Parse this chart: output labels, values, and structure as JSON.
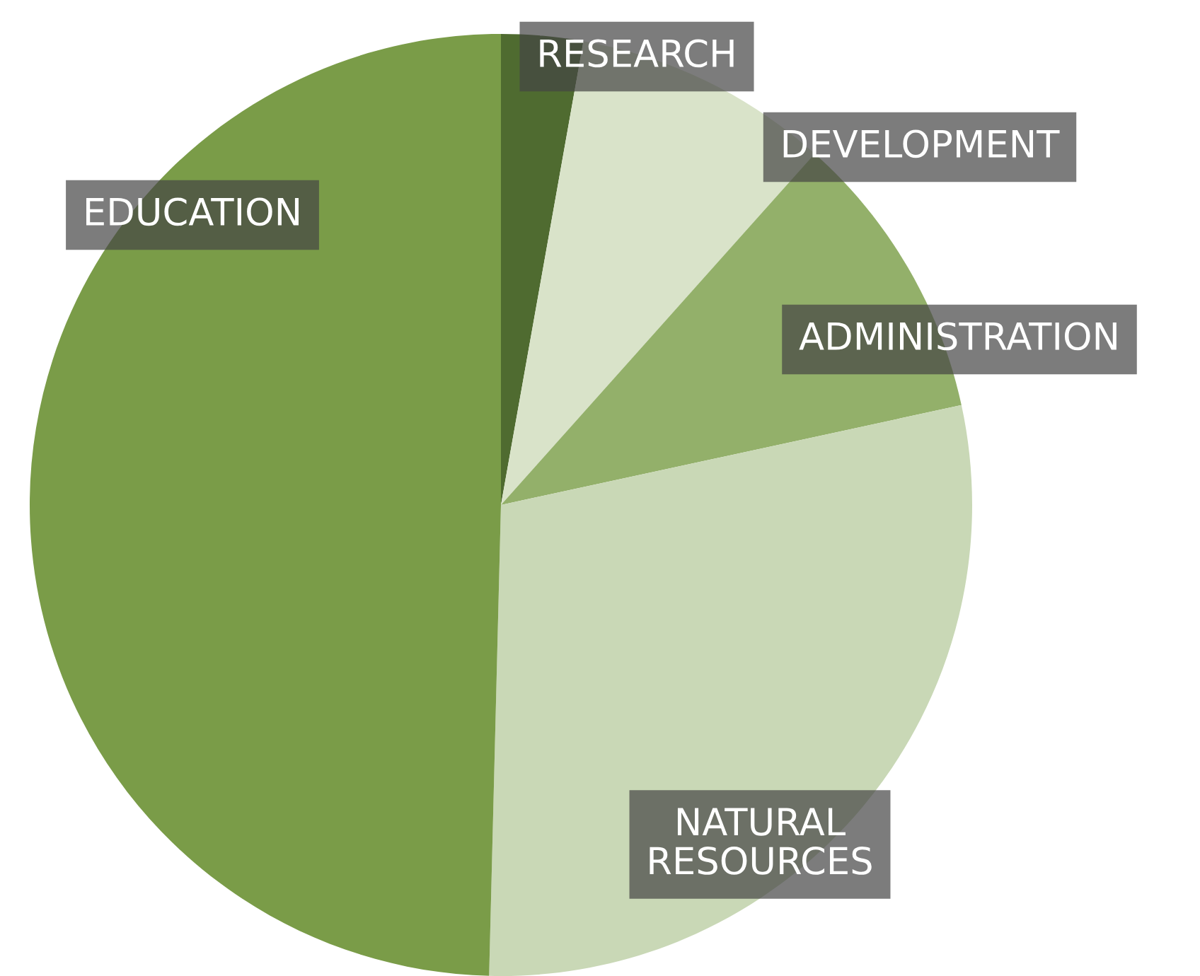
{
  "chart_data": {
    "type": "pie",
    "categories": [
      "RESEARCH",
      "DEVELOPMENT",
      "ADMINISTRATION",
      "NATURAL\nRESOURCES",
      "EDUCATION"
    ],
    "values": [
      2.8,
      8.8,
      10,
      28.8,
      49.6
    ],
    "colors": [
      "#4f6b30",
      "#d9e3c9",
      "#93b06a",
      "#c9d8b6",
      "#7a9c48"
    ]
  }
}
